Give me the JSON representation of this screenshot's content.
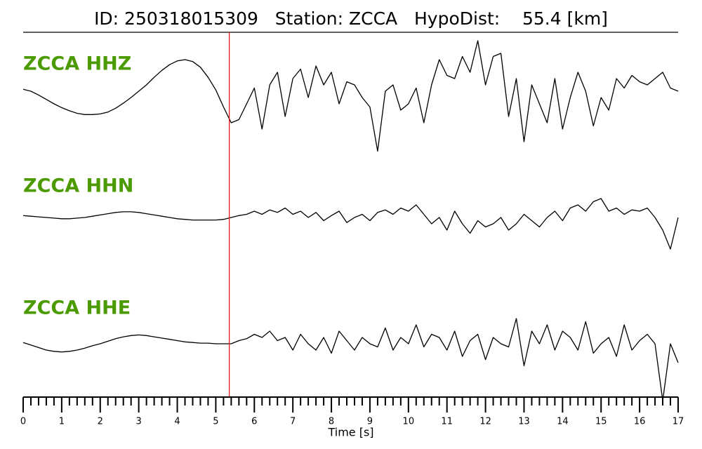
{
  "chart_data": {
    "type": "seismogram",
    "title": "ID: 250318015309   Station: ZCCA   HypoDist:    55.4 [km]",
    "xlabel": "Time [s]",
    "xlim": [
      0,
      17
    ],
    "xticks": [
      0,
      1,
      2,
      3,
      4,
      5,
      6,
      7,
      8,
      9,
      10,
      11,
      12,
      13,
      14,
      15,
      16,
      17
    ],
    "minor_ticks_per_major": 5,
    "ylim": [
      -1,
      1
    ],
    "label_color": "#4a9a00",
    "pick_time": 5.35,
    "pick_color": "#e8191a",
    "x": [
      0,
      0.2,
      0.4,
      0.6,
      0.8,
      1,
      1.2,
      1.4,
      1.6,
      1.8,
      2,
      2.2,
      2.4,
      2.6,
      2.8,
      3,
      3.2,
      3.4,
      3.6,
      3.8,
      4,
      4.2,
      4.4,
      4.6,
      4.8,
      5,
      5.2,
      5.4,
      5.6,
      5.8,
      6,
      6.2,
      6.4,
      6.6,
      6.8,
      7,
      7.2,
      7.4,
      7.6,
      7.8,
      8,
      8.2,
      8.4,
      8.6,
      8.8,
      9,
      9.2,
      9.4,
      9.6,
      9.8,
      10,
      10.2,
      10.4,
      10.6,
      10.8,
      11,
      11.2,
      11.4,
      11.6,
      11.8,
      12,
      12.2,
      12.4,
      12.6,
      12.8,
      13,
      13.2,
      13.4,
      13.6,
      13.8,
      14,
      14.2,
      14.4,
      14.6,
      14.8,
      15,
      15.2,
      15.4,
      15.6,
      15.8,
      16,
      16.2,
      16.4,
      16.6,
      16.8,
      17
    ],
    "series": [
      {
        "name": "ZCCA HHZ",
        "color": "#000000",
        "values": [
          0.03,
          0.0,
          -0.06,
          -0.13,
          -0.2,
          -0.26,
          -0.31,
          -0.35,
          -0.37,
          -0.37,
          -0.36,
          -0.33,
          -0.27,
          -0.19,
          -0.1,
          0.0,
          0.1,
          0.22,
          0.33,
          0.42,
          0.48,
          0.5,
          0.47,
          0.38,
          0.22,
          0.02,
          -0.25,
          -0.5,
          -0.45,
          -0.2,
          0.05,
          -0.6,
          0.1,
          0.3,
          -0.4,
          0.2,
          0.35,
          -0.1,
          0.4,
          0.1,
          0.3,
          -0.2,
          0.15,
          0.1,
          -0.1,
          -0.25,
          -0.95,
          0.0,
          0.1,
          -0.3,
          -0.2,
          0.05,
          -0.5,
          0.1,
          0.5,
          0.25,
          0.2,
          0.55,
          0.3,
          0.8,
          0.1,
          0.55,
          0.6,
          -0.4,
          0.2,
          -0.8,
          0.1,
          -0.2,
          -0.5,
          0.2,
          -0.6,
          -0.1,
          0.3,
          0.0,
          -0.55,
          -0.1,
          -0.3,
          0.2,
          0.05,
          0.25,
          0.15,
          0.1,
          0.2,
          0.3,
          0.05,
          0.0
        ]
      },
      {
        "name": "ZCCA HHN",
        "color": "#000000",
        "values": [
          0.03,
          0.02,
          0.01,
          0.0,
          -0.01,
          -0.02,
          -0.02,
          -0.01,
          0.0,
          0.02,
          0.04,
          0.06,
          0.08,
          0.09,
          0.09,
          0.08,
          0.06,
          0.04,
          0.02,
          0.0,
          -0.02,
          -0.03,
          -0.04,
          -0.04,
          -0.04,
          -0.04,
          -0.03,
          0.0,
          0.03,
          0.05,
          0.1,
          0.05,
          0.12,
          0.08,
          0.15,
          0.05,
          0.1,
          0.0,
          0.08,
          -0.05,
          0.03,
          0.1,
          -0.08,
          0.0,
          0.05,
          -0.05,
          0.08,
          0.12,
          0.05,
          0.15,
          0.1,
          0.2,
          0.05,
          -0.1,
          0.0,
          -0.2,
          0.1,
          -0.1,
          -0.25,
          -0.05,
          -0.15,
          -0.1,
          0.0,
          -0.2,
          -0.1,
          0.05,
          -0.05,
          -0.15,
          0.0,
          0.1,
          -0.05,
          0.15,
          0.2,
          0.1,
          0.25,
          0.3,
          0.1,
          0.15,
          0.05,
          0.12,
          0.1,
          0.15,
          0.0,
          -0.2,
          -0.5,
          0.0
        ]
      },
      {
        "name": "ZCCA HHE",
        "color": "#000000",
        "values": [
          0.02,
          -0.02,
          -0.06,
          -0.1,
          -0.12,
          -0.13,
          -0.12,
          -0.1,
          -0.07,
          -0.03,
          0.0,
          0.04,
          0.08,
          0.11,
          0.13,
          0.14,
          0.13,
          0.11,
          0.09,
          0.07,
          0.05,
          0.03,
          0.02,
          0.01,
          0.01,
          0.0,
          0.0,
          0.0,
          0.05,
          0.08,
          0.15,
          0.1,
          0.2,
          0.05,
          0.1,
          -0.1,
          0.15,
          0.0,
          -0.1,
          0.1,
          -0.15,
          0.2,
          0.05,
          -0.1,
          0.1,
          0.0,
          -0.05,
          0.25,
          -0.1,
          0.1,
          0.0,
          0.3,
          -0.05,
          0.15,
          0.1,
          -0.1,
          0.2,
          -0.2,
          0.05,
          0.15,
          -0.25,
          0.1,
          0.0,
          -0.05,
          0.4,
          -0.35,
          0.2,
          0.0,
          0.3,
          -0.1,
          0.2,
          0.1,
          -0.1,
          0.35,
          -0.15,
          0.0,
          0.1,
          -0.2,
          0.3,
          -0.1,
          0.05,
          0.15,
          0.0,
          -0.9,
          0.0,
          -0.3
        ]
      }
    ]
  }
}
